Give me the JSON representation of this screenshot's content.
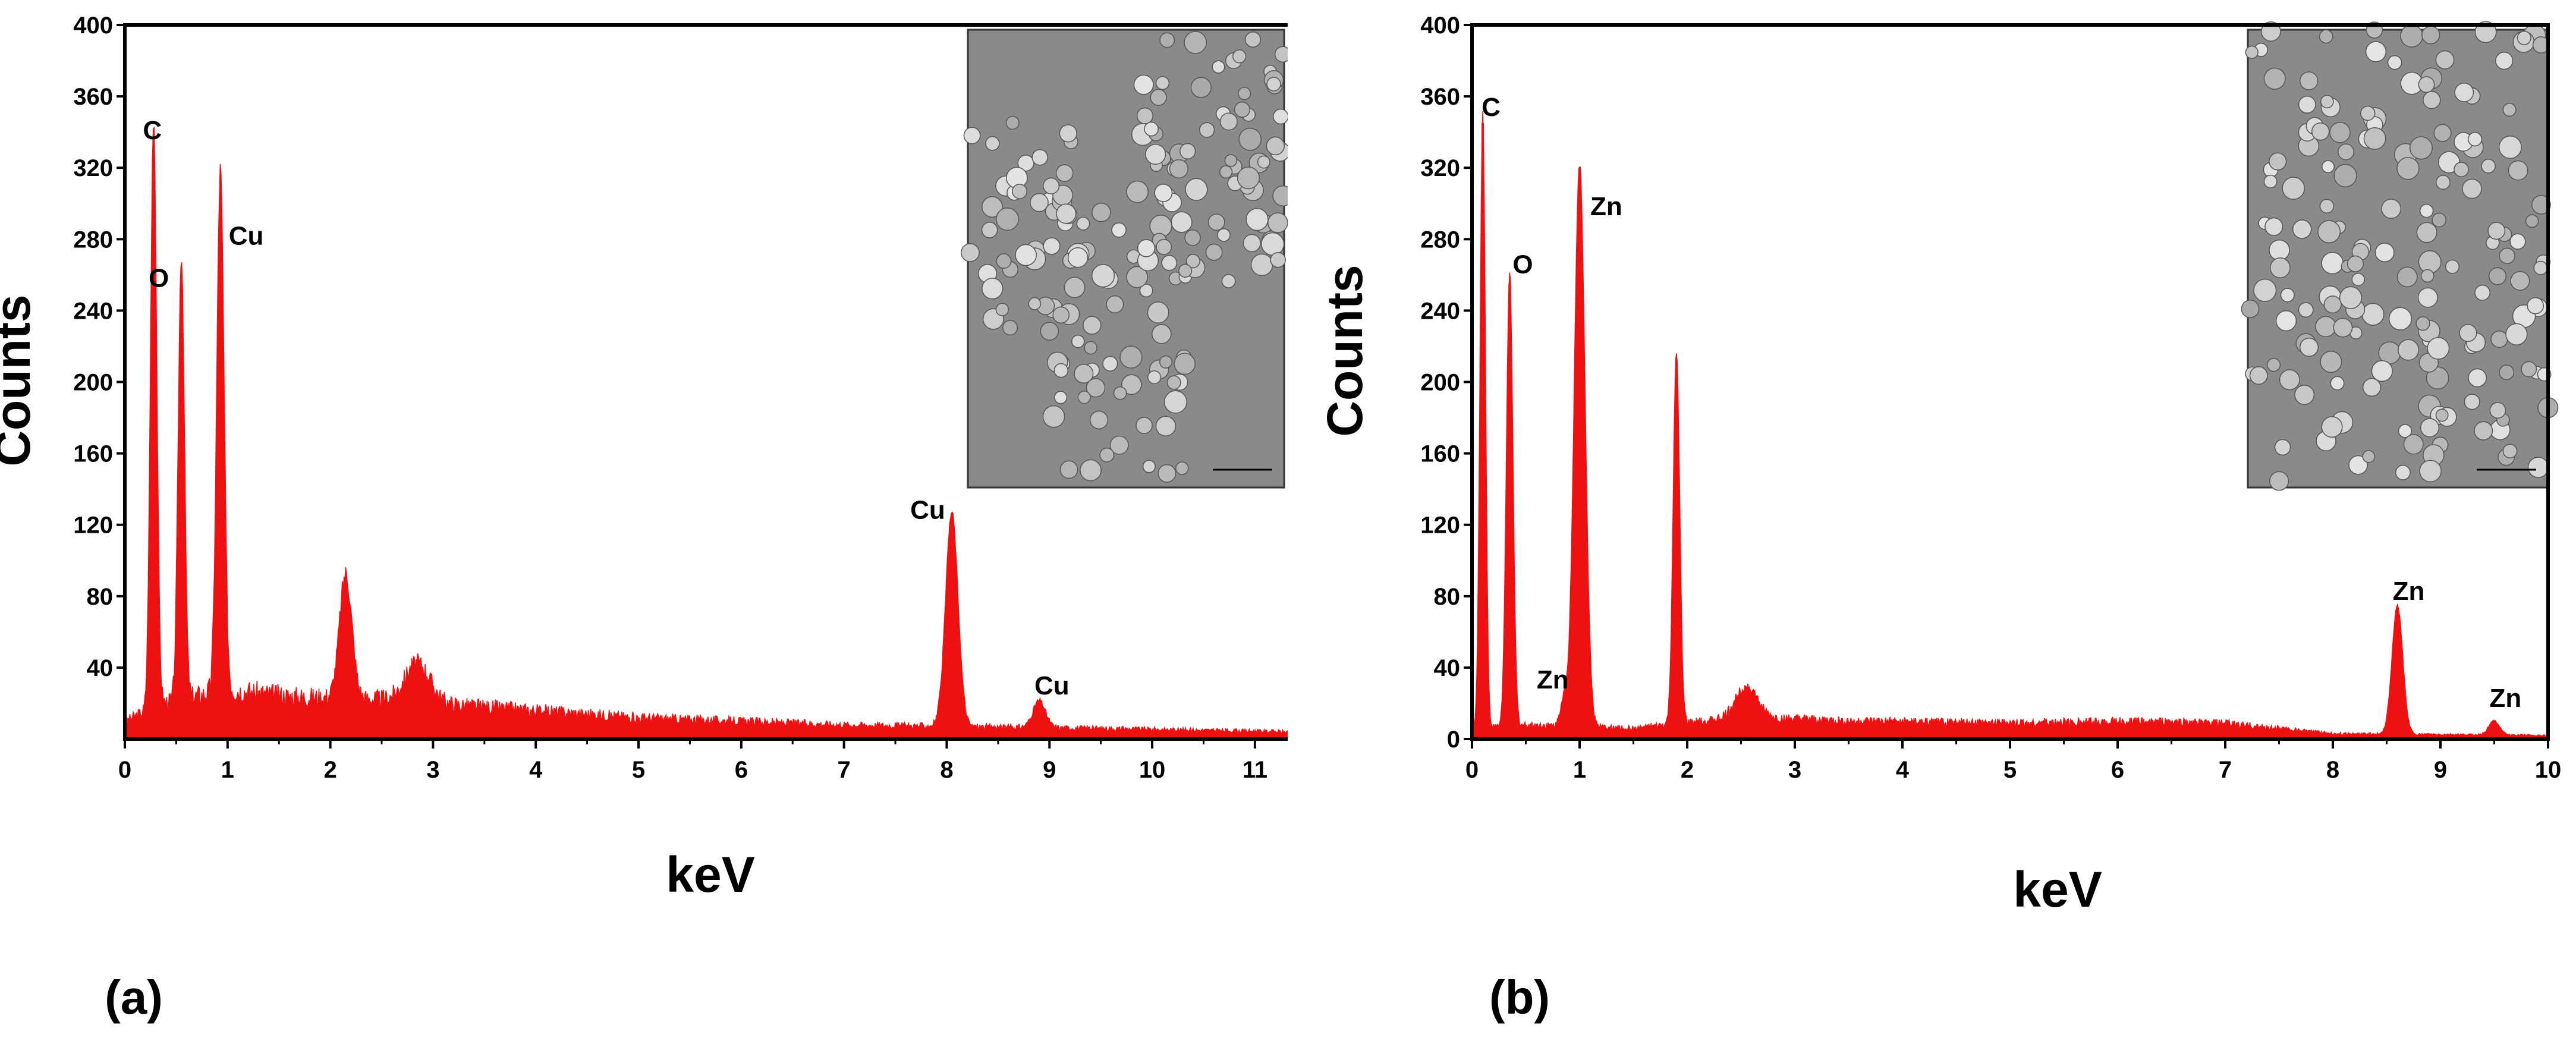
{
  "colors": {
    "spectrum": "#ee1111",
    "axis": "#000000"
  },
  "chart_data": [
    {
      "type": "area",
      "panel_label": "(a)",
      "xlabel": "keV",
      "ylabel": "Counts",
      "xlim": [
        0,
        11.4
      ],
      "ylim": [
        0,
        400
      ],
      "xticks": [
        0,
        1,
        2,
        3,
        4,
        5,
        6,
        7,
        8,
        9,
        10,
        11
      ],
      "yticks": [
        40,
        80,
        120,
        160,
        200,
        240,
        280,
        320,
        360,
        400
      ],
      "inset": "SEM micrograph",
      "peaks": [
        {
          "x": 0.28,
          "y": 330,
          "w": 0.03,
          "label": "C"
        },
        {
          "x": 0.55,
          "y": 250,
          "w": 0.03,
          "label": "O"
        },
        {
          "x": 0.93,
          "y": 292,
          "w": 0.035,
          "label": "Cu"
        },
        {
          "x": 2.15,
          "y": 70,
          "w": 0.06,
          "label": ""
        },
        {
          "x": 2.85,
          "y": 22,
          "w": 0.12,
          "label": ""
        },
        {
          "x": 8.05,
          "y": 120,
          "w": 0.06,
          "label": "Cu"
        },
        {
          "x": 8.9,
          "y": 15,
          "w": 0.06,
          "label": "Cu"
        }
      ],
      "baseline": [
        [
          0,
          10
        ],
        [
          0.35,
          20
        ],
        [
          1.0,
          28
        ],
        [
          1.6,
          24
        ],
        [
          2.6,
          22
        ],
        [
          3.5,
          18
        ],
        [
          5.0,
          12
        ],
        [
          7.0,
          8
        ],
        [
          9.5,
          6
        ],
        [
          11.4,
          4
        ]
      ]
    },
    {
      "type": "area",
      "panel_label": "(b)",
      "xlabel": "keV",
      "ylabel": "Counts",
      "xlim": [
        0,
        10
      ],
      "ylim": [
        0,
        400
      ],
      "xticks": [
        0,
        1,
        2,
        3,
        4,
        5,
        6,
        7,
        8,
        9,
        10
      ],
      "yticks": [
        0,
        40,
        80,
        120,
        160,
        200,
        240,
        280,
        320,
        360,
        400
      ],
      "inset": "SEM micrograph",
      "peaks": [
        {
          "x": 0.1,
          "y": 345,
          "w": 0.025,
          "label": "C"
        },
        {
          "x": 0.35,
          "y": 255,
          "w": 0.03,
          "label": "O"
        },
        {
          "x": 0.85,
          "y": 15,
          "w": 0.03,
          "label": "Zn"
        },
        {
          "x": 1.0,
          "y": 315,
          "w": 0.05,
          "label": "Zn"
        },
        {
          "x": 1.9,
          "y": 208,
          "w": 0.03,
          "label": ""
        },
        {
          "x": 2.55,
          "y": 18,
          "w": 0.1,
          "label": ""
        },
        {
          "x": 8.6,
          "y": 72,
          "w": 0.05,
          "label": "Zn"
        },
        {
          "x": 9.5,
          "y": 8,
          "w": 0.05,
          "label": "Zn"
        }
      ],
      "baseline": [
        [
          0,
          6
        ],
        [
          0.5,
          8
        ],
        [
          1.5,
          6
        ],
        [
          2.5,
          12
        ],
        [
          3.5,
          10
        ],
        [
          5.0,
          9
        ],
        [
          6.0,
          10
        ],
        [
          7.0,
          9
        ],
        [
          8.0,
          3
        ],
        [
          10,
          2
        ]
      ]
    }
  ]
}
